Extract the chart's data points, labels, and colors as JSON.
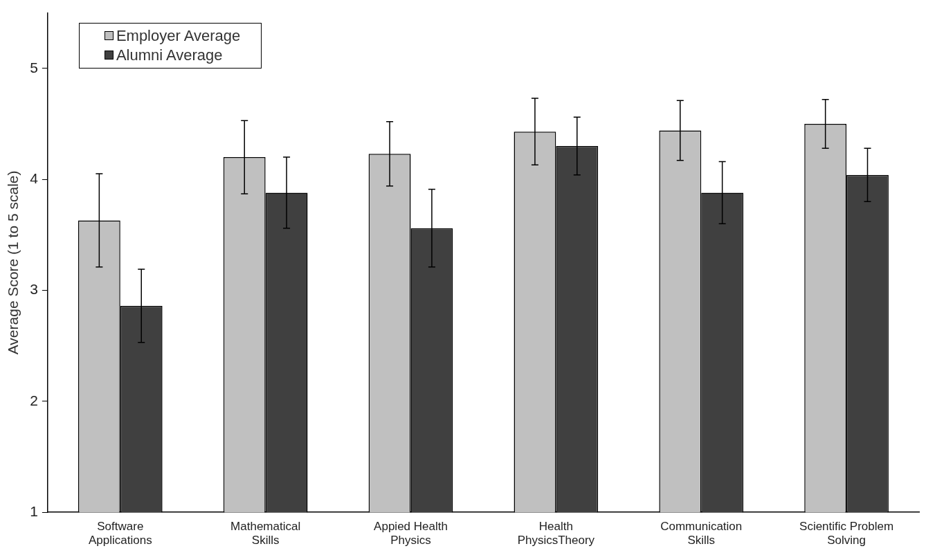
{
  "chart_data": {
    "type": "bar",
    "ylabel": "Average Score (1 to 5 scale)",
    "categories": [
      "Software Applications",
      "Mathematical Skills",
      "Appied Health Physics",
      "Health PhysicsTheory",
      "Communication Skills",
      "Scientific Problem Solving"
    ],
    "series": [
      {
        "name": "Employer Average",
        "color": "#c0c0c0",
        "values": [
          3.63,
          4.2,
          4.23,
          4.43,
          4.44,
          4.5
        ],
        "errors": [
          0.42,
          0.33,
          0.29,
          0.3,
          0.27,
          0.22
        ]
      },
      {
        "name": "Alumni Average",
        "color": "#404040",
        "values": [
          2.86,
          3.88,
          3.56,
          4.3,
          3.88,
          4.04
        ],
        "errors": [
          0.33,
          0.32,
          0.35,
          0.26,
          0.28,
          0.24
        ]
      }
    ],
    "ylim": [
      1,
      5.5
    ],
    "yticks": [
      1,
      2,
      3,
      4,
      5
    ],
    "grid": false,
    "legend": "top left"
  }
}
